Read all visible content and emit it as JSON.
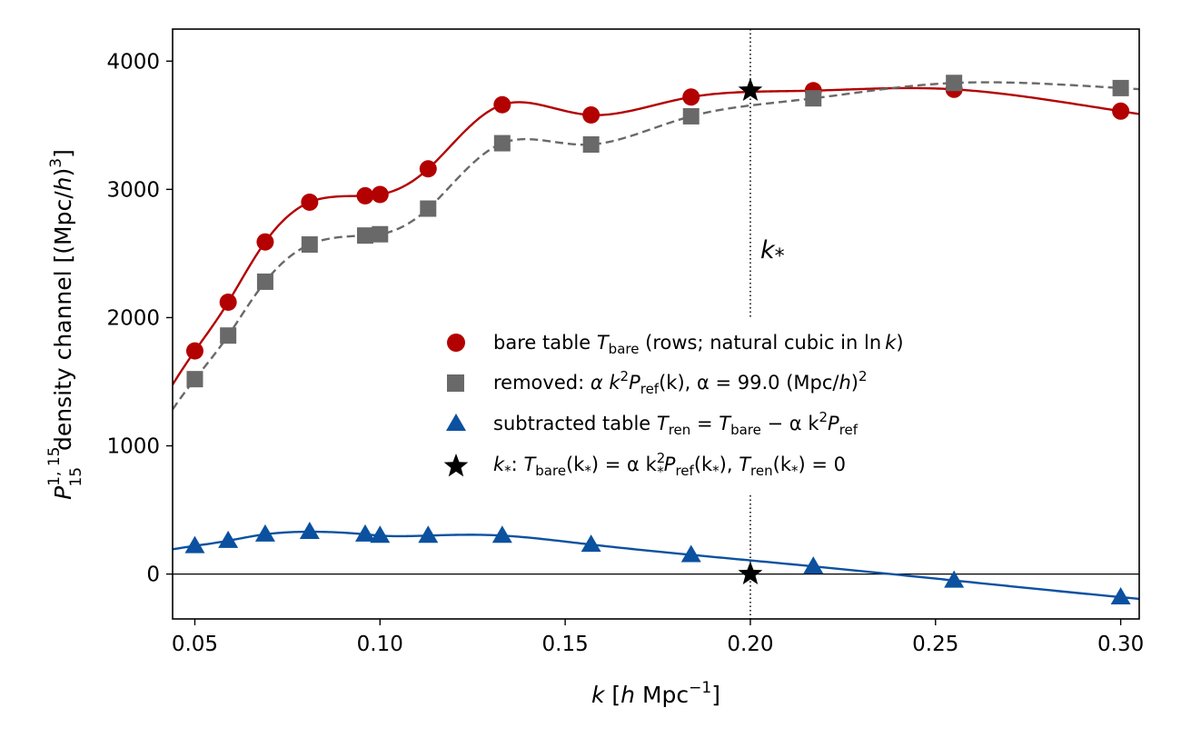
{
  "chart_data": {
    "type": "line",
    "xlabel": {
      "var": "k",
      "open": " [",
      "h": "h",
      "unit": " Mpc",
      "exp": "−1",
      "close": "]"
    },
    "ylabel": {
      "P": "P",
      "sup": "1, 15",
      "sub": "15",
      "text": " density channel [(Mpc/",
      "h": "h",
      "close": ")",
      "exp": "3",
      "end": "]"
    },
    "xlim": [
      0.044,
      0.305
    ],
    "ylim": [
      -350,
      4250
    ],
    "x_ticks": [
      0.05,
      0.1,
      0.15,
      0.2,
      0.25,
      0.3
    ],
    "x_tick_labels": [
      "0.05",
      "0.10",
      "0.15",
      "0.20",
      "0.25",
      "0.30"
    ],
    "y_ticks": [
      0,
      1000,
      2000,
      3000,
      4000
    ],
    "y_tick_labels": [
      "0",
      "1000",
      "2000",
      "3000",
      "4000"
    ],
    "grid": false,
    "legend_position": "center-right",
    "k_star": 0.2,
    "k_star_label": "k",
    "k_star_sub": "*",
    "zero_line": 0,
    "colors": {
      "bare": "#b30000",
      "removed": "#696969",
      "subtracted": "#0b51a0",
      "star": "#000000"
    },
    "series": [
      {
        "id": "bare",
        "marker": "circle",
        "line": "solid",
        "x": [
          0.05,
          0.059,
          0.069,
          0.081,
          0.096,
          0.1,
          0.113,
          0.133,
          0.157,
          0.184,
          0.217,
          0.255,
          0.3
        ],
        "values": [
          1740,
          2120,
          2590,
          2900,
          2950,
          2960,
          3160,
          3660,
          3580,
          3720,
          3770,
          3780,
          3610
        ]
      },
      {
        "id": "removed",
        "marker": "square",
        "line": "dashed",
        "x": [
          0.05,
          0.059,
          0.069,
          0.081,
          0.096,
          0.1,
          0.113,
          0.133,
          0.157,
          0.184,
          0.217,
          0.255,
          0.3
        ],
        "values": [
          1520,
          1860,
          2280,
          2570,
          2640,
          2650,
          2850,
          3360,
          3350,
          3570,
          3710,
          3830,
          3790
        ]
      },
      {
        "id": "subtracted",
        "marker": "triangle",
        "line": "solid",
        "x": [
          0.05,
          0.059,
          0.069,
          0.081,
          0.096,
          0.1,
          0.113,
          0.133,
          0.157,
          0.184,
          0.217,
          0.255,
          0.3
        ],
        "values": [
          220,
          260,
          310,
          330,
          310,
          300,
          300,
          300,
          230,
          150,
          60,
          -50,
          -180
        ]
      }
    ],
    "star_points": [
      {
        "x": 0.2,
        "y": 3770
      },
      {
        "x": 0.2,
        "y": 0
      }
    ],
    "legend": [
      {
        "id": "bare",
        "marker": "circle",
        "t1": "bare table ",
        "t2": "T",
        "t2sub": "bare",
        "t3": " (rows; natural cubic in ln",
        "t4": "k",
        "t5": ")"
      },
      {
        "id": "removed",
        "marker": "square",
        "t1": "removed: ",
        "t2": "α k",
        "t2sup": "2",
        "t3": "P",
        "t3sub": "ref",
        "t4": "(k), α = 99.0 (Mpc/",
        "t5": "h",
        "t6": ")",
        "t6sup": "2"
      },
      {
        "id": "subtracted",
        "marker": "triangle",
        "t1": "subtracted table ",
        "t2": "T",
        "t2sub": "ren",
        "t3": " = ",
        "t4": "T",
        "t4sub": "bare",
        "t5": " − α k",
        "t5sup": "2",
        "t6": "P",
        "t6sub": "ref"
      },
      {
        "id": "star",
        "marker": "star",
        "t1": "k",
        "t1sub": "*",
        "t2": ": ",
        "t3": "T",
        "t3sub": "bare",
        "t4": "(k",
        "t4sub": "*",
        "t5": ") = α k",
        "t5sup": "2",
        "t5sub": "*",
        "t6": "P",
        "t6sub": "ref",
        "t7": "(k",
        "t7sub": "*",
        "t8": "), ",
        "t9": "T",
        "t9sub": "ren",
        "t10": "(k",
        "t10sub": "*",
        "t11": ") = 0"
      }
    ]
  }
}
